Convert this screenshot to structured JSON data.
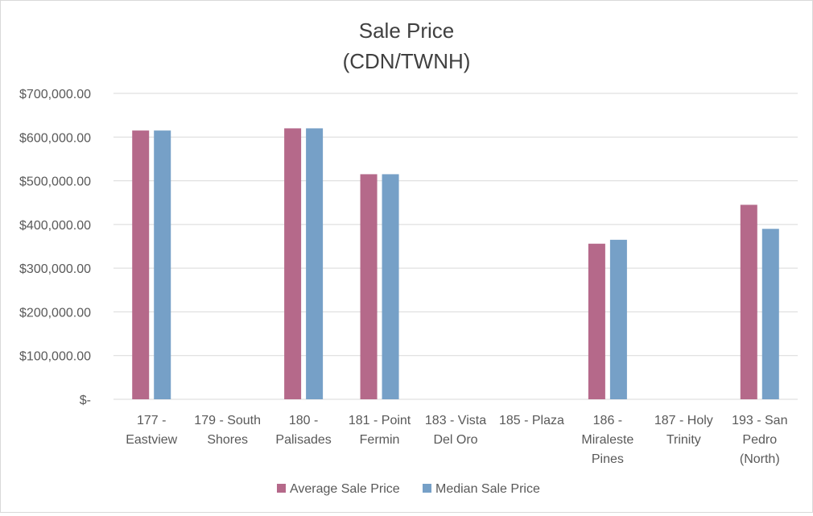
{
  "chart_data": {
    "type": "bar",
    "title": [
      "Sale Price",
      "(CDN/TWNH)"
    ],
    "xlabel": "",
    "ylabel": "",
    "ylim": [
      0,
      700000
    ],
    "ytick_labels": [
      "$-",
      "$100,000.00",
      "$200,000.00",
      "$300,000.00",
      "$400,000.00",
      "$500,000.00",
      "$600,000.00",
      "$700,000.00"
    ],
    "categories": [
      [
        "177 -",
        "Eastview"
      ],
      [
        "179 - South",
        "Shores"
      ],
      [
        "180 -",
        "Palisades"
      ],
      [
        "181 - Point",
        "Fermin"
      ],
      [
        "183 - Vista",
        "Del Oro"
      ],
      [
        "185 - Plaza"
      ],
      [
        "186 -",
        "Miraleste",
        "Pines"
      ],
      [
        "187 - Holy",
        "Trinity"
      ],
      [
        "193 - San",
        "Pedro",
        "(North)"
      ]
    ],
    "series": [
      {
        "name": "Average Sale Price",
        "color": "#b5698a",
        "values": [
          615000,
          null,
          620000,
          515000,
          null,
          null,
          356000,
          null,
          445000
        ]
      },
      {
        "name": "Median Sale Price",
        "color": "#76a0c7",
        "values": [
          615000,
          null,
          620000,
          515000,
          null,
          null,
          365000,
          null,
          390000
        ]
      }
    ],
    "grid": true,
    "legend_position": "bottom"
  }
}
